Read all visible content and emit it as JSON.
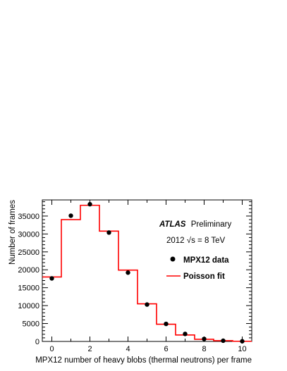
{
  "chart_data": {
    "type": "histogram",
    "xlabel": "MPX12 number of heavy blobs (thermal neutrons) per frame",
    "ylabel": "Number of frames",
    "xlim": [
      -0.5,
      10.5
    ],
    "ylim": [
      0,
      39500
    ],
    "xticks": [
      0,
      2,
      4,
      6,
      8,
      10
    ],
    "yticks": [
      0,
      5000,
      10000,
      15000,
      20000,
      25000,
      30000,
      35000
    ],
    "annotation": {
      "atlas": "ATLAS",
      "label": "Preliminary",
      "energy": "2012 √s = 8 TeV"
    },
    "legend": {
      "data_label": "MPX12 data",
      "fit_label": "Poisson fit",
      "placement": "right"
    },
    "data_series": {
      "name": "MPX12 data",
      "x": [
        0,
        1,
        2,
        3,
        4,
        5,
        6,
        7,
        8,
        9,
        10
      ],
      "y": [
        17600,
        35100,
        38300,
        30400,
        19200,
        10300,
        4900,
        2100,
        700,
        200,
        50
      ]
    },
    "fit_series": {
      "name": "Poisson fit",
      "bins": [
        [
          -0.5,
          0.5
        ],
        [
          0.5,
          1.5
        ],
        [
          1.5,
          2.5
        ],
        [
          2.5,
          3.5
        ],
        [
          3.5,
          4.5
        ],
        [
          4.5,
          5.5
        ],
        [
          5.5,
          6.5
        ],
        [
          6.5,
          7.5
        ],
        [
          7.5,
          8.5
        ],
        [
          8.5,
          9.5
        ],
        [
          9.5,
          10.5
        ]
      ],
      "y": [
        18000,
        34000,
        38000,
        30800,
        19900,
        10500,
        4800,
        1800,
        600,
        200,
        50
      ]
    },
    "colors": {
      "fit": "#ff0000",
      "data": "#000000",
      "frame": "#000000"
    }
  }
}
